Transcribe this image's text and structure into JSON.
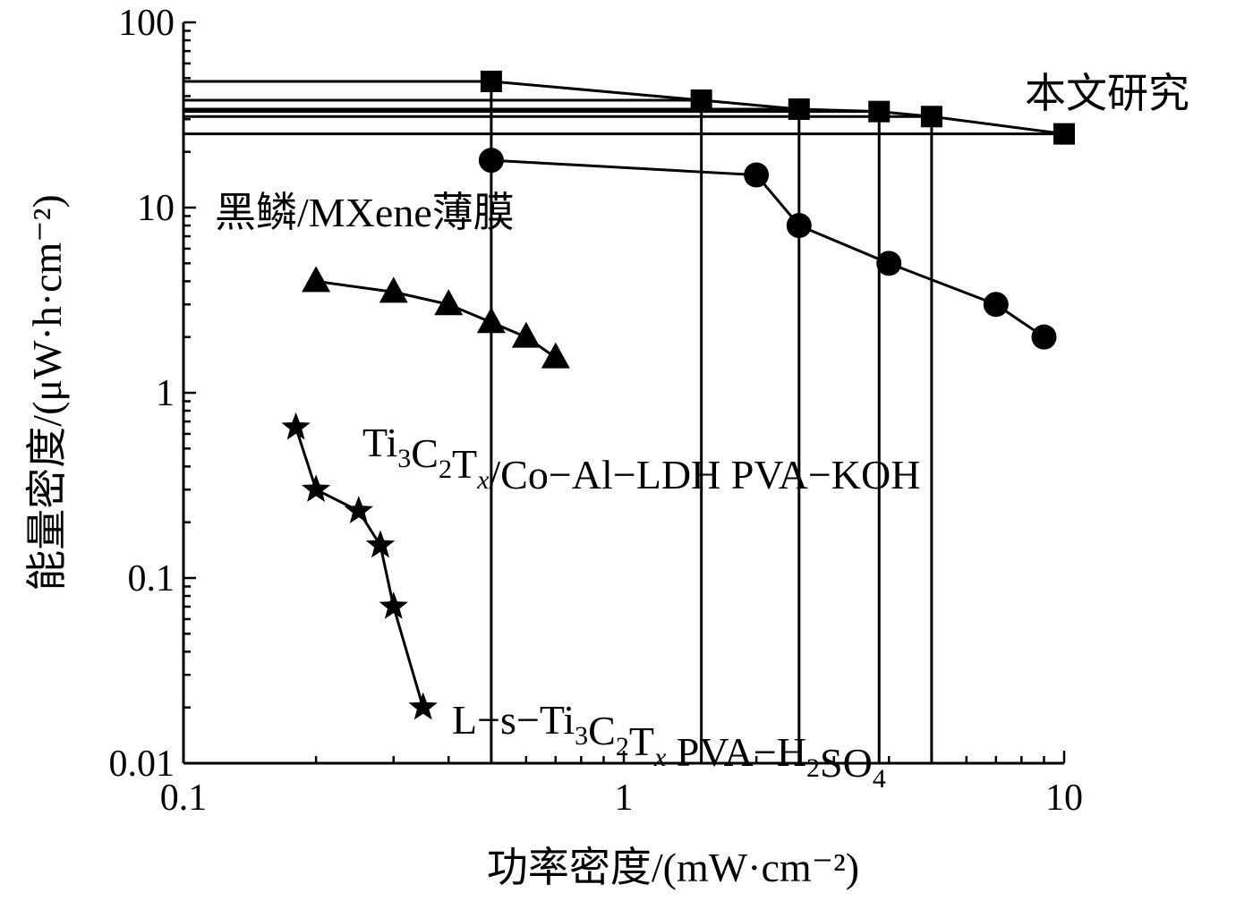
{
  "chart_data": {
    "type": "line",
    "title": "",
    "xlabel": "功率密度/(mW·cm⁻²)",
    "ylabel": "能量密度/(μW·h·cm⁻²)",
    "xscale": "log",
    "yscale": "log",
    "xlim": [
      0.1,
      10
    ],
    "ylim": [
      0.01,
      100
    ],
    "xticks": [
      "0.1",
      "1",
      "10"
    ],
    "xtick_values": [
      0.1,
      1,
      10
    ],
    "yticks": [
      "100",
      "10",
      "1",
      "0.1",
      "0.01"
    ],
    "ytick_values": [
      100,
      10,
      1,
      0.1,
      0.01
    ],
    "grid": false,
    "series": [
      {
        "name": "本文研究",
        "marker": "square",
        "guide_lines": true,
        "x": [
          0.5,
          1.5,
          2.5,
          3.8,
          5.0,
          10
        ],
        "y": [
          48,
          38,
          34,
          33,
          31,
          25
        ],
        "label_parts": [
          {
            "t": "本文研究"
          }
        ]
      },
      {
        "name": "黑鳞/MXene薄膜",
        "marker": "circle",
        "x": [
          0.5,
          2.0,
          2.5,
          4.0,
          7.0,
          9.0
        ],
        "y": [
          18,
          15,
          8,
          5,
          3,
          2
        ],
        "label_parts": [
          {
            "t": "黑鳞/MXene薄膜"
          }
        ]
      },
      {
        "name": "Ti3C2Tx/Co-Al-LDH PVA-KOH",
        "marker": "triangle",
        "x": [
          0.2,
          0.3,
          0.4,
          0.5,
          0.6,
          0.7
        ],
        "y": [
          4.0,
          3.5,
          3.0,
          2.4,
          2.0,
          1.55
        ],
        "label_parts": [
          {
            "t": "Ti"
          },
          {
            "t": "3",
            "sub": true
          },
          {
            "t": "C"
          },
          {
            "t": "2",
            "sub": true
          },
          {
            "t": "T"
          },
          {
            "t": "x",
            "sub": true,
            "italic": true
          },
          {
            "t": "/Co−Al−LDH PVA−KOH"
          }
        ]
      },
      {
        "name": "L-s-Ti3C2Tx PVA-H2SO4",
        "marker": "star",
        "x": [
          0.18,
          0.2,
          0.25,
          0.28,
          0.3,
          0.35
        ],
        "y": [
          0.65,
          0.3,
          0.23,
          0.15,
          0.07,
          0.02
        ],
        "label_parts": [
          {
            "t": "L−s−Ti"
          },
          {
            "t": "3",
            "sub": true
          },
          {
            "t": "C"
          },
          {
            "t": "2",
            "sub": true
          },
          {
            "t": "T"
          },
          {
            "t": "x",
            "sub": true,
            "italic": true
          },
          {
            "t": " PVA−H"
          },
          {
            "t": "2",
            "sub": true
          },
          {
            "t": "SO"
          },
          {
            "t": "4",
            "sub": true
          }
        ]
      }
    ]
  }
}
